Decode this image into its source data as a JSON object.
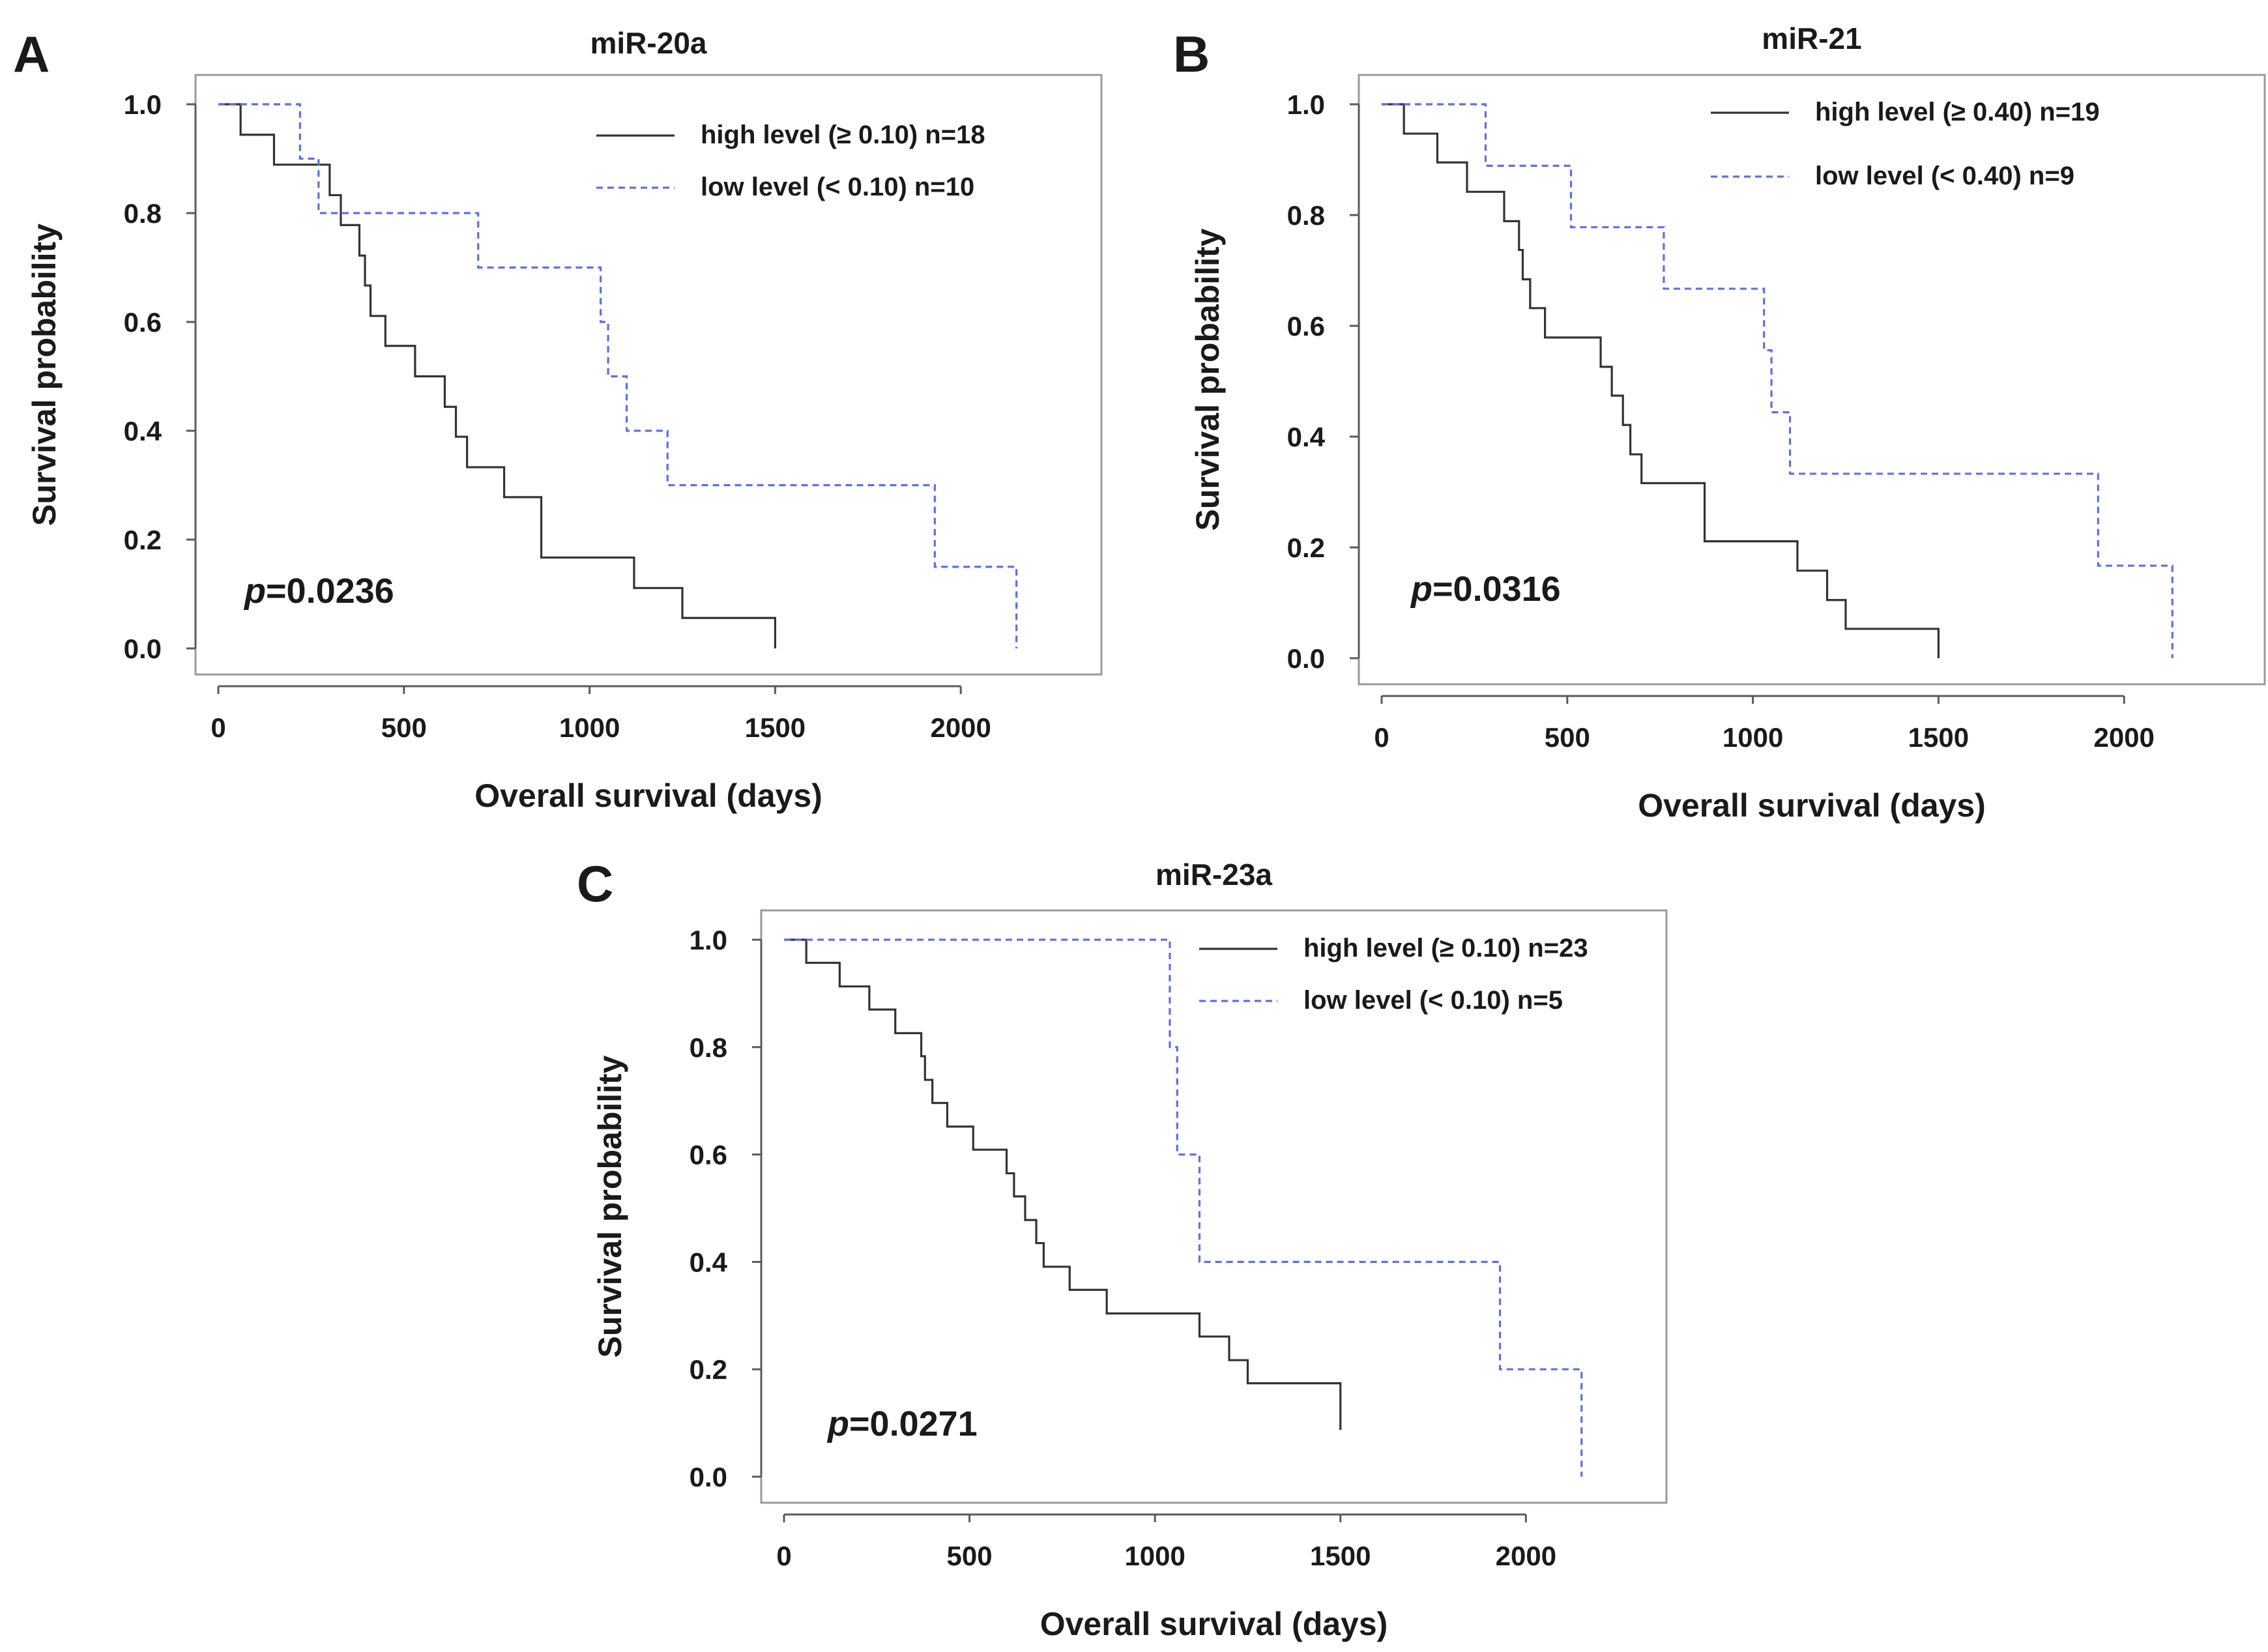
{
  "chart_data": [
    {
      "type": "line",
      "panel": "A",
      "title": "miR-20a",
      "xlabel": "Overall survival (days)",
      "ylabel": "Survival probability",
      "xlim": [
        0,
        2250
      ],
      "ylim": [
        0,
        1.0
      ],
      "xticks": [
        "0",
        "500",
        "1000",
        "1500",
        "2000"
      ],
      "yticks": [
        "0.0",
        "0.2",
        "0.4",
        "0.6",
        "0.8",
        "1.0"
      ],
      "p_prefix": "p",
      "p_value": "=0.0236",
      "series": [
        {
          "name": "high level (≥ 0.10)",
          "n": "n=18",
          "x": [
            0,
            60,
            150,
            300,
            330,
            380,
            395,
            410,
            450,
            530,
            610,
            640,
            670,
            700,
            770,
            870,
            1120,
            1250,
            1500
          ],
          "y": [
            1.0,
            0.944,
            0.889,
            0.833,
            0.778,
            0.722,
            0.667,
            0.611,
            0.556,
            0.5,
            0.444,
            0.389,
            0.333,
            0.333,
            0.278,
            0.167,
            0.111,
            0.056,
            0.0
          ]
        },
        {
          "name": "low level   (< 0.10)",
          "n": "n=10",
          "x": [
            0,
            220,
            270,
            700,
            1030,
            1050,
            1100,
            1210,
            1930,
            2150
          ],
          "y": [
            1.0,
            0.9,
            0.8,
            0.7,
            0.6,
            0.5,
            0.4,
            0.3,
            0.15,
            0.0
          ]
        }
      ]
    },
    {
      "type": "line",
      "panel": "B",
      "title": "miR-21",
      "xlabel": "Overall survival (days)",
      "ylabel": "Survival probability",
      "xlim": [
        0,
        2250
      ],
      "ylim": [
        0,
        1.0
      ],
      "xticks": [
        "0",
        "500",
        "1000",
        "1500",
        "2000"
      ],
      "yticks": [
        "0.0",
        "0.2",
        "0.4",
        "0.6",
        "0.8",
        "1.0"
      ],
      "p_prefix": "p",
      "p_value": "=0.0316",
      "series": [
        {
          "name": "high level (≥ 0.40)",
          "n": "n=19",
          "x": [
            0,
            60,
            150,
            230,
            330,
            370,
            380,
            400,
            440,
            590,
            620,
            650,
            670,
            700,
            870,
            1120,
            1200,
            1250,
            1500
          ],
          "y": [
            1.0,
            0.947,
            0.895,
            0.842,
            0.789,
            0.737,
            0.684,
            0.632,
            0.579,
            0.526,
            0.474,
            0.421,
            0.368,
            0.316,
            0.211,
            0.158,
            0.105,
            0.053,
            0.0
          ]
        },
        {
          "name": "low level   (< 0.40)",
          "n": "n=9",
          "x": [
            0,
            280,
            510,
            760,
            1030,
            1050,
            1100,
            1930,
            2130
          ],
          "y": [
            1.0,
            0.889,
            0.778,
            0.667,
            0.556,
            0.444,
            0.333,
            0.167,
            0.0
          ]
        }
      ]
    },
    {
      "type": "line",
      "panel": "C",
      "title": "miR-23a",
      "xlabel": "Overall survival (days)",
      "ylabel": "Survival probability",
      "xlim": [
        0,
        2250
      ],
      "ylim": [
        0,
        1.0
      ],
      "xticks": [
        "0",
        "500",
        "1000",
        "1500",
        "2000"
      ],
      "yticks": [
        "0.0",
        "0.2",
        "0.4",
        "0.6",
        "0.8",
        "1.0"
      ],
      "p_prefix": "p",
      "p_value": "=0.0271",
      "series": [
        {
          "name": "high level (≥ 0.10)",
          "n": "n=23",
          "x": [
            0,
            60,
            150,
            230,
            300,
            370,
            380,
            400,
            440,
            510,
            600,
            620,
            650,
            680,
            700,
            770,
            870,
            1120,
            1200,
            1250,
            1500
          ],
          "y": [
            1.0,
            0.957,
            0.913,
            0.87,
            0.826,
            0.783,
            0.739,
            0.696,
            0.652,
            0.609,
            0.565,
            0.522,
            0.478,
            0.435,
            0.391,
            0.348,
            0.304,
            0.261,
            0.217,
            0.174,
            0.087
          ]
        },
        {
          "name": "low level   (< 0.10)",
          "n": "n=5",
          "x": [
            0,
            1040,
            1060,
            1120,
            1930,
            2150
          ],
          "y": [
            1.0,
            0.8,
            0.6,
            0.4,
            0.2,
            0.0
          ]
        }
      ]
    }
  ]
}
